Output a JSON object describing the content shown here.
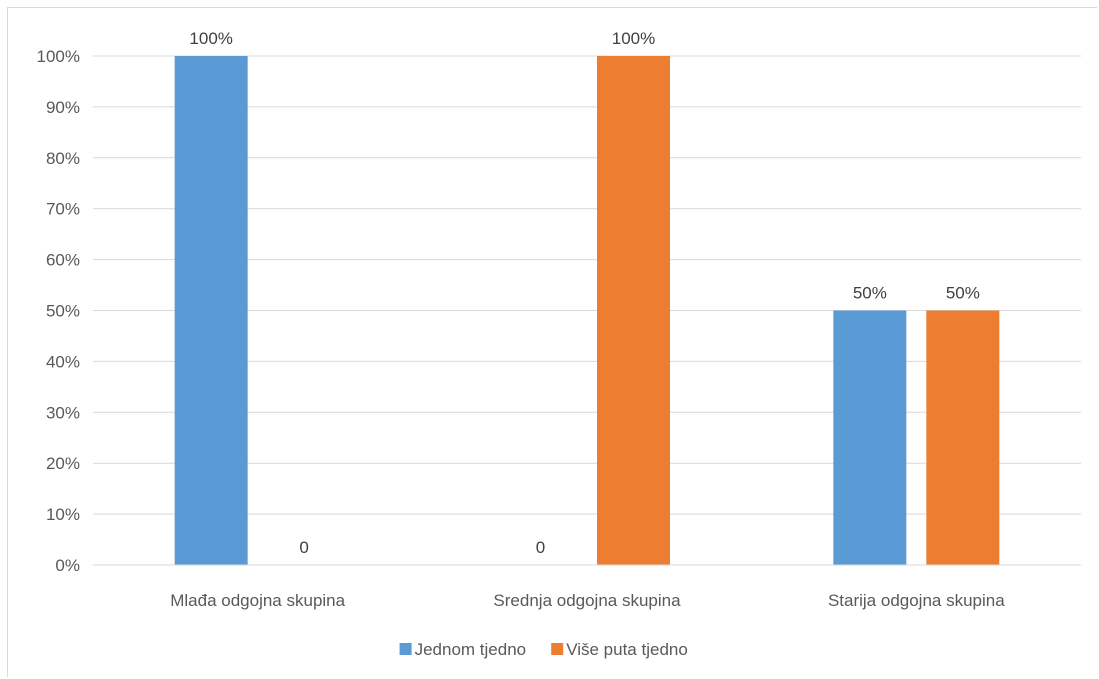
{
  "chart_data": {
    "type": "bar",
    "categories": [
      "Mlađa odgojna skupina",
      "Srednja odgojna skupina",
      "Starija odgojna skupina"
    ],
    "series": [
      {
        "name": "Jednom tjedno",
        "values": [
          100,
          0,
          50
        ],
        "labels": [
          "100%",
          "0",
          "50%"
        ],
        "color": "#5b9bd5"
      },
      {
        "name": "Više puta tjedno",
        "values": [
          0,
          100,
          50
        ],
        "labels": [
          "0",
          "100%",
          "50%"
        ],
        "color": "#ed7d31"
      }
    ],
    "yticks": [
      "0%",
      "10%",
      "20%",
      "30%",
      "40%",
      "50%",
      "60%",
      "70%",
      "80%",
      "90%",
      "100%"
    ],
    "ylim": [
      0,
      100
    ],
    "grid": true,
    "legend_position": "bottom",
    "title": "",
    "xlabel": "",
    "ylabel": ""
  }
}
